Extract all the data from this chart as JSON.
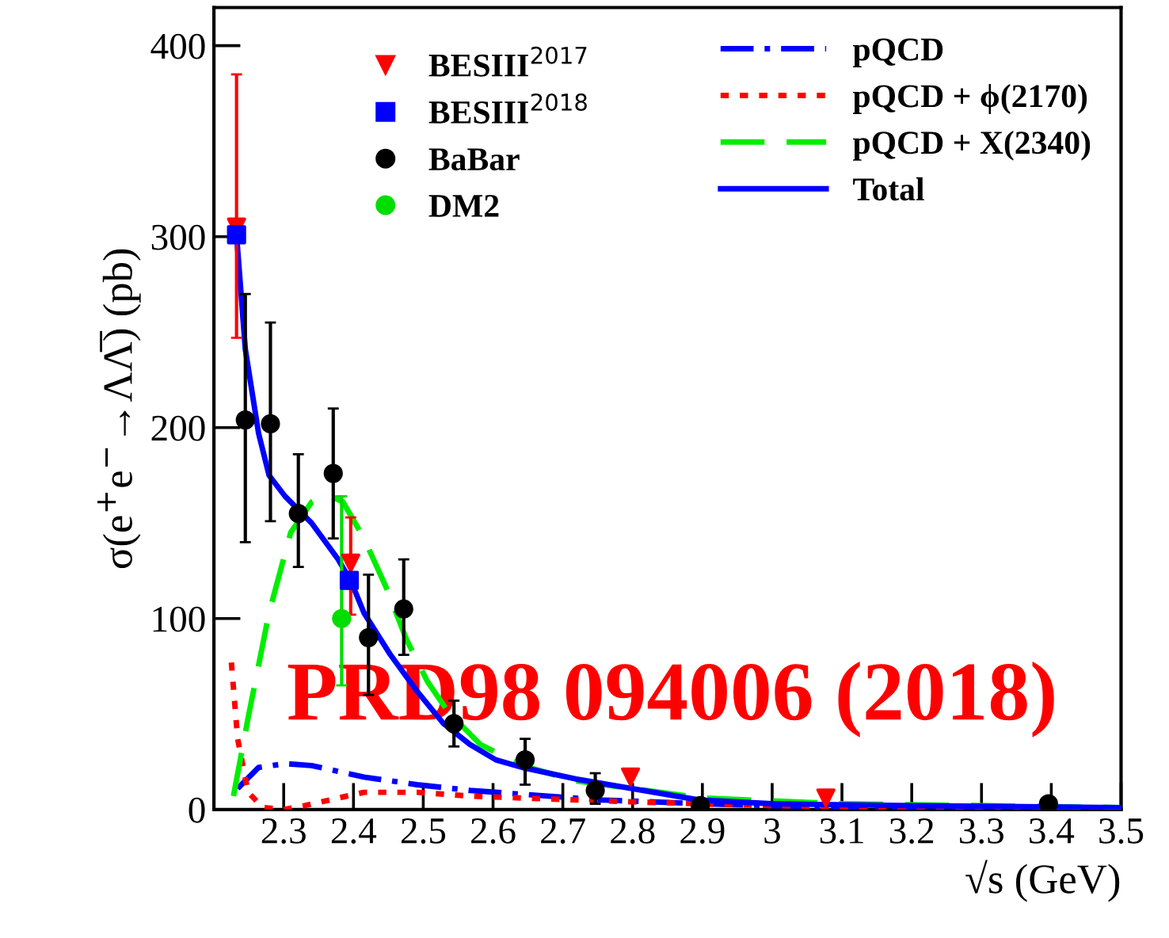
{
  "chart_data": {
    "type": "scatter",
    "xlabel": "√s (GeV)",
    "ylabel": "σ(e$^{+}$e$^{−}$→ΛΛ̅) (pb)",
    "xlim": [
      2.2,
      3.5
    ],
    "xticks": [
      2.3,
      2.4,
      2.5,
      2.6,
      2.7,
      2.8,
      2.9,
      3,
      3.1,
      3.2,
      3.3,
      3.4,
      3.5
    ],
    "ylim": [
      0,
      420
    ],
    "yticks": [
      0,
      100,
      200,
      300,
      400
    ],
    "legend": "top",
    "annotations": [
      "PRD98 094006 (2018)"
    ],
    "series": [
      {
        "name": "BESIII$^{2017}$",
        "marker": "triangle",
        "color": "#ff0000",
        "x": [
          2.2324,
          2.396,
          2.797,
          3.077
        ],
        "values": [
          305,
          129,
          17,
          6
        ],
        "errors": [
          [
            247,
            385
          ],
          [
            102,
            153
          ],
          null,
          null
        ]
      },
      {
        "name": "BESIII$^{2018}$",
        "marker": "square",
        "color": "#0000ff",
        "x": [
          2.2324,
          2.394
        ],
        "values": [
          301,
          120
        ]
      },
      {
        "name": "BaBar",
        "marker": "circle",
        "color": "#000000",
        "x": [
          2.245,
          2.281,
          2.321,
          2.371,
          2.4215,
          2.472,
          2.544,
          2.646,
          2.7465,
          2.897,
          3.396
        ],
        "values": [
          204,
          202,
          155,
          176,
          90,
          105,
          45,
          26,
          10,
          2,
          3
        ],
        "errors": [
          [
            140,
            270
          ],
          [
            151,
            255
          ],
          [
            127,
            186
          ],
          [
            142,
            210
          ],
          [
            60,
            123
          ],
          [
            81,
            131
          ],
          [
            33,
            57
          ],
          [
            13,
            37
          ],
          [
            3,
            19
          ],
          null,
          null
        ]
      },
      {
        "name": "DM2",
        "marker": "circle",
        "color": "#00dd00",
        "x": [
          2.383
        ],
        "values": [
          100
        ],
        "errors": [
          [
            65,
            164
          ]
        ]
      },
      {
        "name": "pQCD",
        "type": "line",
        "line_style": "dashdot",
        "color": "#0000ff",
        "x": [
          2.234,
          2.264,
          2.302,
          2.34,
          2.415,
          2.491,
          2.567,
          2.642,
          2.755,
          2.9,
          3.0,
          3.2,
          3.5
        ],
        "values": [
          11,
          22,
          24,
          23,
          17,
          13,
          10,
          8,
          5,
          3,
          2,
          1,
          0
        ]
      },
      {
        "name": "pQCD + ϕ(2170)",
        "type": "line",
        "line_style": "dotted",
        "color": "#ff0000",
        "x": [
          2.225,
          2.234,
          2.249,
          2.27,
          2.3,
          2.33,
          2.378,
          2.415,
          2.491,
          2.567,
          2.642,
          2.8,
          3.0,
          3.5
        ],
        "values": [
          77,
          37,
          9,
          1,
          0,
          2,
          6,
          9,
          9,
          7,
          6,
          4,
          2,
          0
        ]
      },
      {
        "name": "pQCD + X(2340)",
        "type": "line",
        "line_style": "dashed",
        "color": "#00ee00",
        "x": [
          2.228,
          2.249,
          2.279,
          2.31,
          2.34,
          2.3625,
          2.385,
          2.415,
          2.446,
          2.476,
          2.506,
          2.536,
          2.582,
          2.642,
          2.717,
          2.9,
          3.1,
          3.5
        ],
        "values": [
          7,
          48,
          103,
          145,
          161,
          165,
          161,
          142,
          117,
          89,
          67,
          51,
          34,
          23,
          15,
          6,
          3,
          1
        ]
      },
      {
        "name": "Total",
        "type": "line",
        "line_style": "solid",
        "color": "#0000ff",
        "x": [
          2.2324,
          2.245,
          2.264,
          2.279,
          2.302,
          2.34,
          2.378,
          2.397,
          2.415,
          2.453,
          2.491,
          2.529,
          2.567,
          2.604,
          2.642,
          2.718,
          2.895,
          3.0,
          3.2,
          3.5
        ],
        "values": [
          301,
          241,
          197,
          175,
          164,
          150,
          131,
          119,
          103,
          81,
          62,
          45,
          34,
          26,
          22,
          16,
          5,
          3,
          2,
          1
        ]
      }
    ]
  }
}
